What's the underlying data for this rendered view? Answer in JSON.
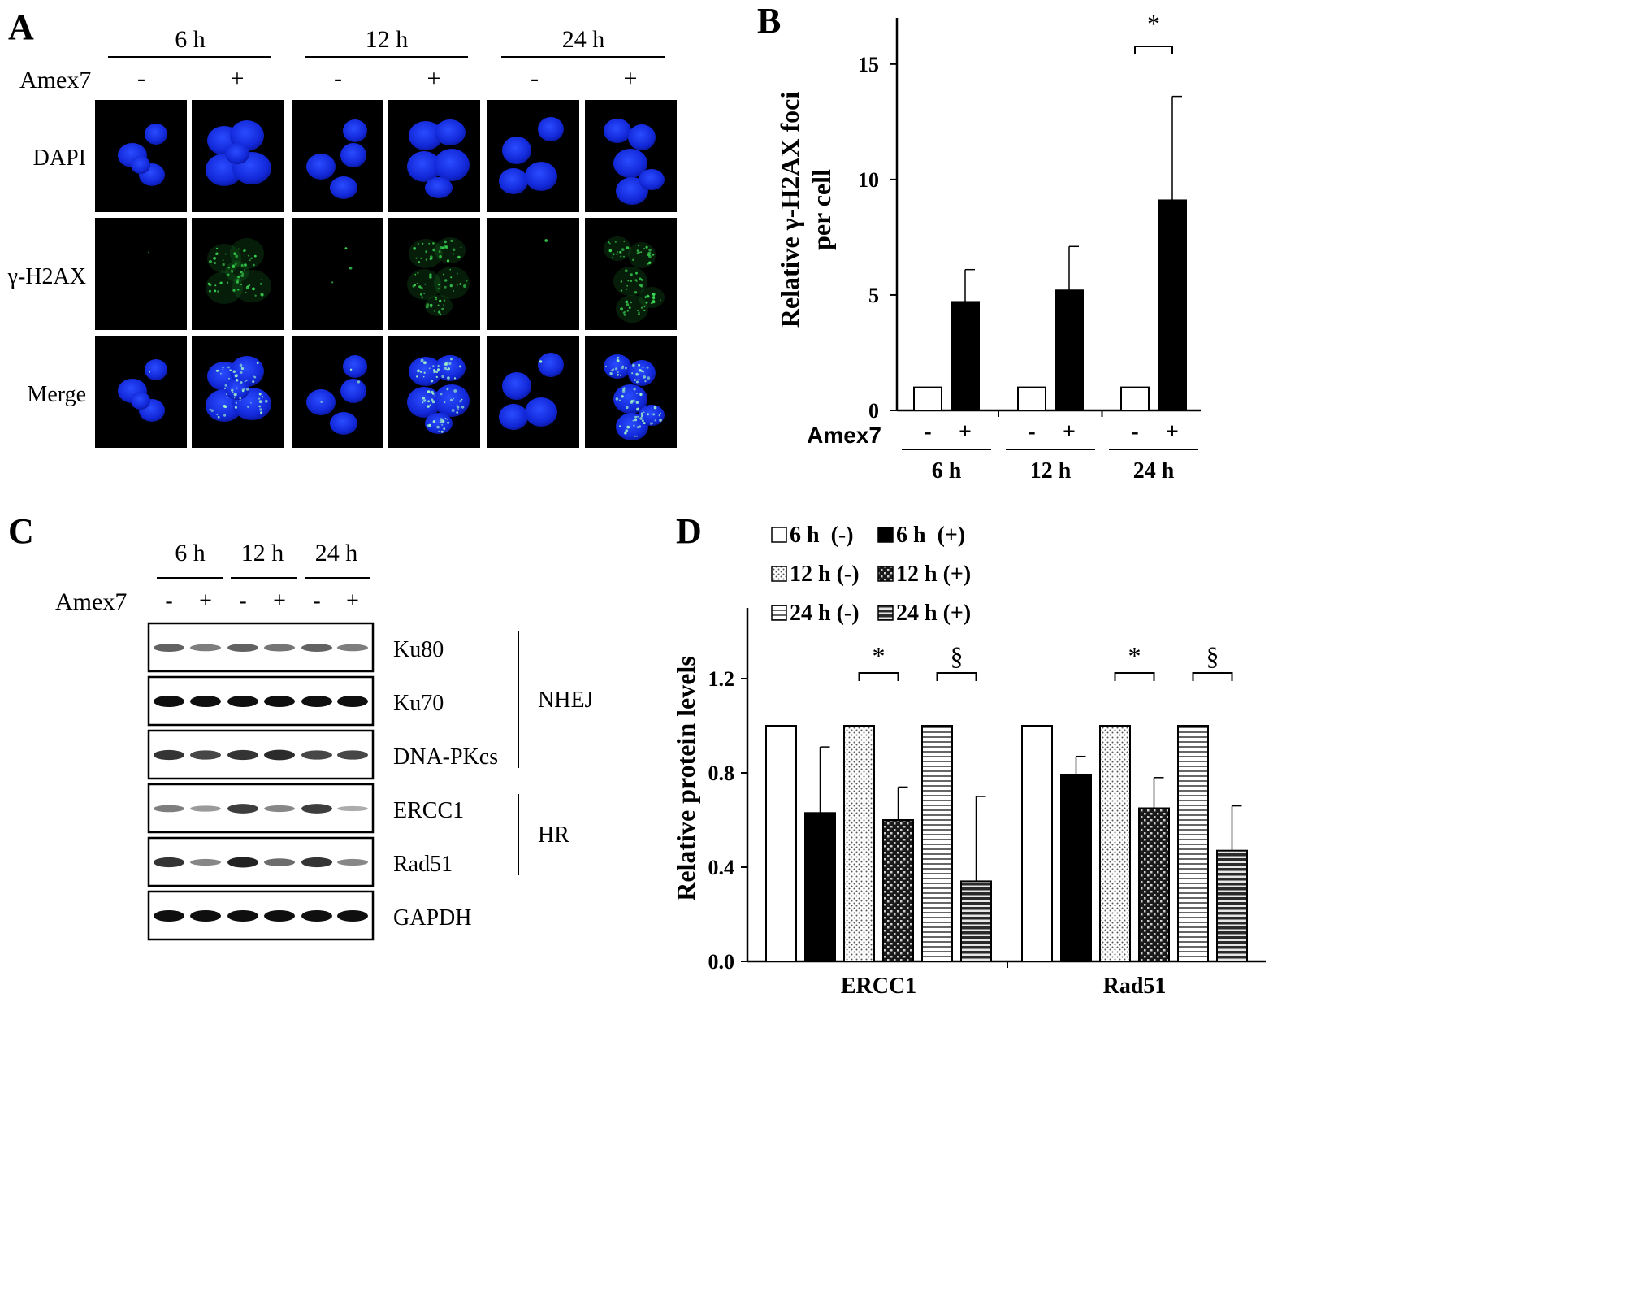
{
  "panels": {
    "A": {
      "letter": "A",
      "timepoints": [
        "6 h",
        "12 h",
        "24 h"
      ],
      "treatment_label": "Amex7",
      "treatment_signs": [
        "-",
        "+",
        "-",
        "+",
        "-",
        "+"
      ],
      "row_labels": [
        "DAPI",
        "γ-H2AX",
        "Merge"
      ]
    },
    "B": {
      "letter": "B",
      "ylabel_line1": "Relative γ-H2AX foci",
      "ylabel_line2": "per cell",
      "treatment_label": "Amex7",
      "significance": "*"
    },
    "C": {
      "letter": "C",
      "timepoints": [
        "6 h",
        "12 h",
        "24 h"
      ],
      "treatment_label": "Amex7",
      "treatment_signs": [
        "-",
        "+",
        "-",
        "+",
        "-",
        "+"
      ],
      "proteins": [
        "Ku80",
        "Ku70",
        "DNA-PKcs",
        "ERCC1",
        "Rad51",
        "GAPDH"
      ],
      "pathways": [
        "NHEJ",
        "HR"
      ],
      "band_intensity": {
        "Ku80": [
          0.55,
          0.4,
          0.55,
          0.45,
          0.55,
          0.4
        ],
        "Ku70": [
          1.0,
          1.0,
          1.0,
          1.0,
          1.0,
          1.0
        ],
        "DNA-PKcs": [
          0.8,
          0.7,
          0.8,
          0.85,
          0.7,
          0.7
        ],
        "ERCC1": [
          0.4,
          0.25,
          0.75,
          0.35,
          0.75,
          0.15
        ],
        "Rad51": [
          0.8,
          0.35,
          0.9,
          0.5,
          0.8,
          0.35
        ],
        "GAPDH": [
          1.0,
          1.0,
          1.0,
          1.0,
          1.0,
          1.0
        ]
      }
    },
    "D": {
      "letter": "D",
      "ylabel": "Relative protein levels",
      "legend": [
        "6 h  (-)",
        "6 h  (+)",
        "12 h (-)",
        "12 h (+)",
        "24 h (-)",
        "24 h (+)"
      ],
      "significance": [
        "*",
        "§",
        "*",
        "§"
      ]
    }
  },
  "chart_data": [
    {
      "type": "bar",
      "panel": "B",
      "title": "",
      "xlabel": "",
      "ylabel": "Relative γ-H2AX foci per cell",
      "categories": [
        "6 h",
        "12 h",
        "24 h"
      ],
      "series": [
        {
          "name": "-",
          "values": [
            1.0,
            1.0,
            1.0
          ],
          "errors": [
            0,
            0,
            0
          ],
          "fill": "#ffffff"
        },
        {
          "name": "+",
          "values": [
            4.7,
            5.2,
            9.1
          ],
          "errors": [
            1.4,
            1.9,
            4.5
          ],
          "fill": "#000000"
        }
      ],
      "yticks": [
        0,
        5,
        10,
        15
      ],
      "ylim": [
        0,
        17
      ],
      "grid": false,
      "significance": [
        {
          "group": "24 h",
          "label": "*"
        }
      ]
    },
    {
      "type": "bar",
      "panel": "D",
      "title": "",
      "xlabel": "",
      "ylabel": "Relative protein levels",
      "categories": [
        "ERCC1",
        "Rad51"
      ],
      "series": [
        {
          "name": "6 h (-)",
          "values": [
            1.0,
            1.0
          ],
          "errors": [
            0,
            0
          ],
          "pattern": "white"
        },
        {
          "name": "6 h (+)",
          "values": [
            0.63,
            0.79
          ],
          "errors": [
            0.28,
            0.08
          ],
          "pattern": "black"
        },
        {
          "name": "12 h (-)",
          "values": [
            1.0,
            1.0
          ],
          "errors": [
            0,
            0
          ],
          "pattern": "dots"
        },
        {
          "name": "12 h (+)",
          "values": [
            0.6,
            0.65
          ],
          "errors": [
            0.14,
            0.13
          ],
          "pattern": "checker"
        },
        {
          "name": "24 h (-)",
          "values": [
            1.0,
            1.0
          ],
          "errors": [
            0,
            0
          ],
          "pattern": "hlines-light"
        },
        {
          "name": "24 h (+)",
          "values": [
            0.34,
            0.47
          ],
          "errors": [
            0.36,
            0.19
          ],
          "pattern": "hlines-dark"
        }
      ],
      "yticks": [
        0.0,
        0.4,
        0.8,
        1.2
      ],
      "ylim": [
        0,
        1.5
      ],
      "grid": false,
      "legend_position": "top",
      "significance": [
        {
          "category": "ERCC1",
          "between": [
            "12 h (-)",
            "12 h (+)"
          ],
          "label": "*"
        },
        {
          "category": "ERCC1",
          "between": [
            "24 h (-)",
            "24 h (+)"
          ],
          "label": "§"
        },
        {
          "category": "Rad51",
          "between": [
            "12 h (-)",
            "12 h (+)"
          ],
          "label": "*"
        },
        {
          "category": "Rad51",
          "between": [
            "24 h (-)",
            "24 h (+)"
          ],
          "label": "§"
        }
      ]
    }
  ]
}
